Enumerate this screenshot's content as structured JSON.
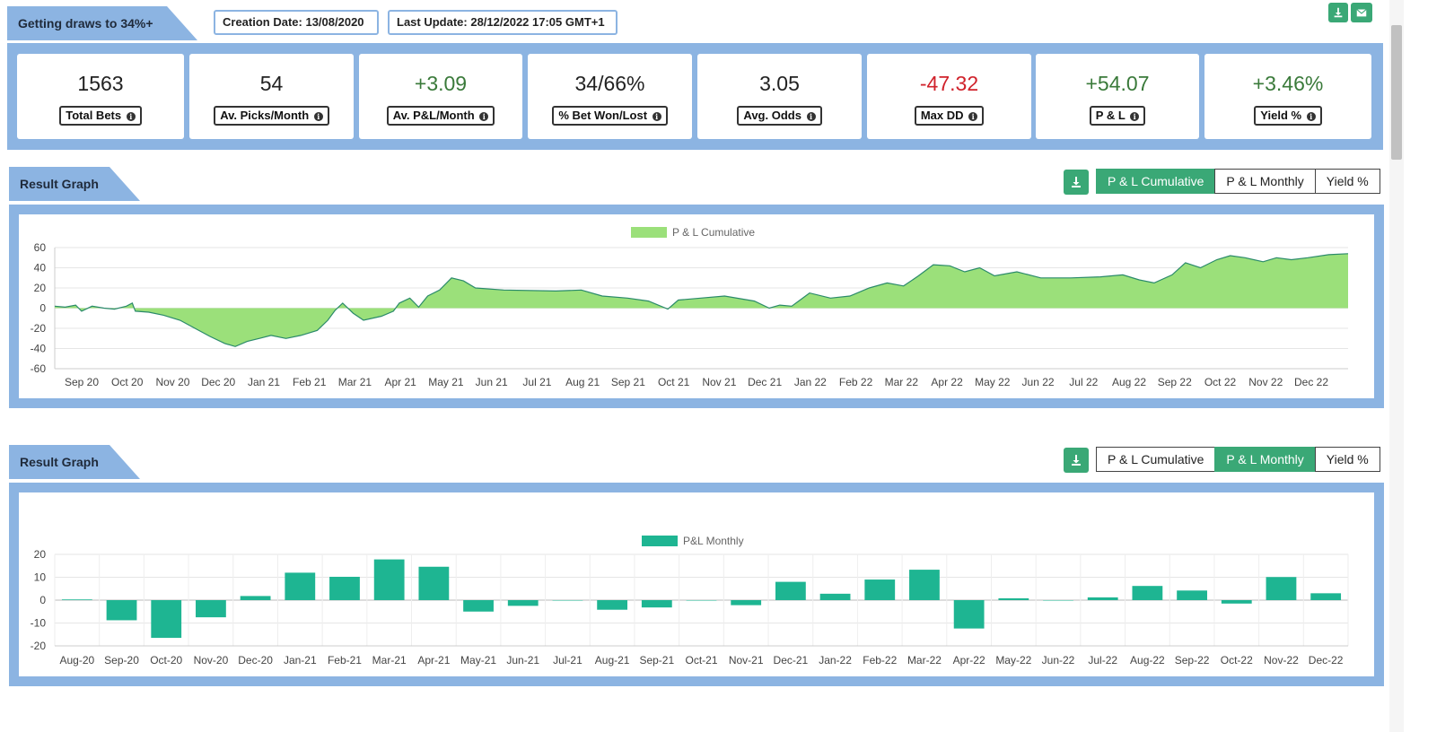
{
  "header": {
    "title": "Getting draws to 34%+",
    "creation_date": "Creation Date: 13/08/2020",
    "last_update": "Last Update: 28/12/2022 17:05 GMT+1"
  },
  "stats": [
    {
      "value": "1563",
      "label": "Total Bets",
      "color": "#222222"
    },
    {
      "value": "54",
      "label": "Av. Picks/Month",
      "color": "#222222"
    },
    {
      "value": "+3.09",
      "label": "Av. P&L/Month",
      "color": "#3a7a3a"
    },
    {
      "value": "34/66%",
      "label": "% Bet Won/Lost",
      "color": "#222222"
    },
    {
      "value": "3.05",
      "label": "Avg. Odds",
      "color": "#222222"
    },
    {
      "value": "-47.32",
      "label": "Max DD",
      "color": "#d0222b"
    },
    {
      "value": "+54.07",
      "label": "P & L",
      "color": "#3a7a3a"
    },
    {
      "value": "+3.46%",
      "label": "Yield %",
      "color": "#3a7a3a"
    }
  ],
  "sections": [
    {
      "title": "Result Graph",
      "buttons": [
        "P & L Cumulative",
        "P & L Monthly",
        "Yield %"
      ],
      "active": 0
    },
    {
      "title": "Result Graph",
      "buttons": [
        "P & L Cumulative",
        "P & L Monthly",
        "Yield %"
      ],
      "active": 1
    }
  ],
  "chart_data": [
    {
      "type": "area",
      "legend": "P & L Cumulative",
      "fill_color": "#9be07a",
      "line_color": "#2a8a6a",
      "ylim": [
        -60,
        60
      ],
      "yticks": [
        60,
        40,
        20,
        0,
        -20,
        -40,
        -60
      ],
      "x_labels": [
        "Sep 20",
        "Oct 20",
        "Nov 20",
        "Dec 20",
        "Jan 21",
        "Feb 21",
        "Mar 21",
        "Apr 21",
        "May 21",
        "Jun 21",
        "Jul 21",
        "Aug 21",
        "Sep 21",
        "Oct 21",
        "Nov 21",
        "Dec 21",
        "Jan 22",
        "Feb 22",
        "Mar 22",
        "Apr 22",
        "May 22",
        "Jun 22",
        "Jul 22",
        "Aug 22",
        "Sep 22",
        "Oct 22",
        "Nov 22",
        "Dec 22"
      ],
      "x_range": [
        "2020-08-13",
        "2022-12-28"
      ],
      "points": [
        [
          "2020-08-13",
          2
        ],
        [
          "2020-08-20",
          1
        ],
        [
          "2020-08-27",
          3
        ],
        [
          "2020-08-31",
          -3
        ],
        [
          "2020-09-07",
          2
        ],
        [
          "2020-09-15",
          0
        ],
        [
          "2020-09-22",
          -1
        ],
        [
          "2020-09-30",
          2
        ],
        [
          "2020-10-04",
          5
        ],
        [
          "2020-10-06",
          -3
        ],
        [
          "2020-10-15",
          -4
        ],
        [
          "2020-10-25",
          -7
        ],
        [
          "2020-11-05",
          -12
        ],
        [
          "2020-11-15",
          -20
        ],
        [
          "2020-11-25",
          -28
        ],
        [
          "2020-12-05",
          -35
        ],
        [
          "2020-12-12",
          -38
        ],
        [
          "2020-12-20",
          -33
        ],
        [
          "2020-12-28",
          -30
        ],
        [
          "2021-01-05",
          -27
        ],
        [
          "2021-01-15",
          -30
        ],
        [
          "2021-01-25",
          -27
        ],
        [
          "2021-02-05",
          -22
        ],
        [
          "2021-02-12",
          -12
        ],
        [
          "2021-02-17",
          -2
        ],
        [
          "2021-02-22",
          5
        ],
        [
          "2021-03-01",
          -5
        ],
        [
          "2021-03-08",
          -12
        ],
        [
          "2021-03-20",
          -8
        ],
        [
          "2021-03-28",
          -3
        ],
        [
          "2021-04-01",
          5
        ],
        [
          "2021-04-08",
          10
        ],
        [
          "2021-04-14",
          1
        ],
        [
          "2021-04-20",
          12
        ],
        [
          "2021-04-28",
          18
        ],
        [
          "2021-05-06",
          30
        ],
        [
          "2021-05-14",
          27
        ],
        [
          "2021-05-22",
          20
        ],
        [
          "2021-06-10",
          18
        ],
        [
          "2021-07-15",
          17
        ],
        [
          "2021-08-01",
          18
        ],
        [
          "2021-08-15",
          12
        ],
        [
          "2021-09-01",
          10
        ],
        [
          "2021-09-15",
          7
        ],
        [
          "2021-09-28",
          -1
        ],
        [
          "2021-10-05",
          8
        ],
        [
          "2021-10-20",
          10
        ],
        [
          "2021-11-05",
          12
        ],
        [
          "2021-11-25",
          7
        ],
        [
          "2021-12-05",
          0
        ],
        [
          "2021-12-12",
          3
        ],
        [
          "2021-12-20",
          2
        ],
        [
          "2022-01-01",
          15
        ],
        [
          "2022-01-15",
          10
        ],
        [
          "2022-01-28",
          12
        ],
        [
          "2022-02-10",
          20
        ],
        [
          "2022-02-22",
          25
        ],
        [
          "2022-03-05",
          22
        ],
        [
          "2022-03-15",
          32
        ],
        [
          "2022-03-25",
          43
        ],
        [
          "2022-04-05",
          42
        ],
        [
          "2022-04-15",
          36
        ],
        [
          "2022-04-25",
          40
        ],
        [
          "2022-05-05",
          32
        ],
        [
          "2022-05-20",
          36
        ],
        [
          "2022-06-05",
          30
        ],
        [
          "2022-06-25",
          30
        ],
        [
          "2022-07-15",
          31
        ],
        [
          "2022-07-30",
          33
        ],
        [
          "2022-08-10",
          28
        ],
        [
          "2022-08-20",
          25
        ],
        [
          "2022-09-01",
          33
        ],
        [
          "2022-09-10",
          45
        ],
        [
          "2022-09-20",
          40
        ],
        [
          "2022-10-01",
          48
        ],
        [
          "2022-10-10",
          52
        ],
        [
          "2022-10-20",
          50
        ],
        [
          "2022-11-01",
          46
        ],
        [
          "2022-11-10",
          50
        ],
        [
          "2022-11-20",
          48
        ],
        [
          "2022-12-01",
          50
        ],
        [
          "2022-12-15",
          53
        ],
        [
          "2022-12-28",
          54
        ]
      ]
    },
    {
      "type": "bar",
      "legend": "P&L Monthly",
      "bar_color": "#1eb592",
      "ylim": [
        -20,
        20
      ],
      "yticks": [
        20,
        10,
        0,
        -10,
        -20
      ],
      "categories": [
        "Aug-20",
        "Sep-20",
        "Oct-20",
        "Nov-20",
        "Dec-20",
        "Jan-21",
        "Feb-21",
        "Mar-21",
        "Apr-21",
        "May-21",
        "Jun-21",
        "Jul-21",
        "Aug-21",
        "Sep-21",
        "Oct-21",
        "Nov-21",
        "Dec-21",
        "Jan-22",
        "Feb-22",
        "Mar-22",
        "Apr-22",
        "May-22",
        "Jun-22",
        "Jul-22",
        "Aug-22",
        "Sep-22",
        "Oct-22",
        "Nov-22",
        "Dec-22"
      ],
      "values": [
        0.3,
        -8.8,
        -16.5,
        -7.5,
        1.8,
        12,
        10.2,
        17.8,
        14.6,
        -5,
        -2.5,
        0,
        -4.2,
        -3.2,
        0,
        -2.2,
        8,
        2.8,
        9,
        13.3,
        -12.4,
        0.8,
        0,
        1.2,
        6.2,
        4.2,
        -1.5,
        10.1,
        3
      ]
    }
  ]
}
